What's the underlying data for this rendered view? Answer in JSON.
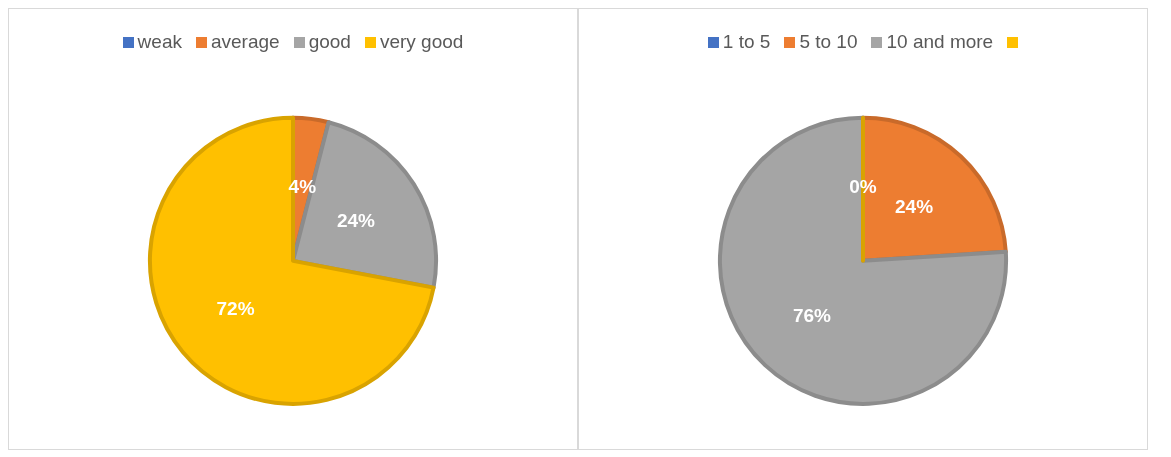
{
  "chart_data": [
    {
      "type": "pie",
      "categories": [
        "weak",
        "average",
        "good",
        "very good"
      ],
      "values": [
        0,
        4,
        24,
        72
      ],
      "colors": [
        "#4472c4",
        "#ed7d31",
        "#a5a5a5",
        "#ffc000"
      ],
      "value_labels": [
        null,
        "4%",
        "24%",
        "72%"
      ],
      "legend": "top"
    },
    {
      "type": "pie",
      "categories": [
        "1 to 5",
        "5 to 10",
        "10 and more",
        null
      ],
      "values": [
        0,
        24,
        76,
        0
      ],
      "colors": [
        "#4472c4",
        "#ed7d31",
        "#a5a5a5",
        "#ffc000"
      ],
      "value_labels": [
        "0%",
        "24%",
        "76%",
        null
      ],
      "legend": "top"
    }
  ]
}
